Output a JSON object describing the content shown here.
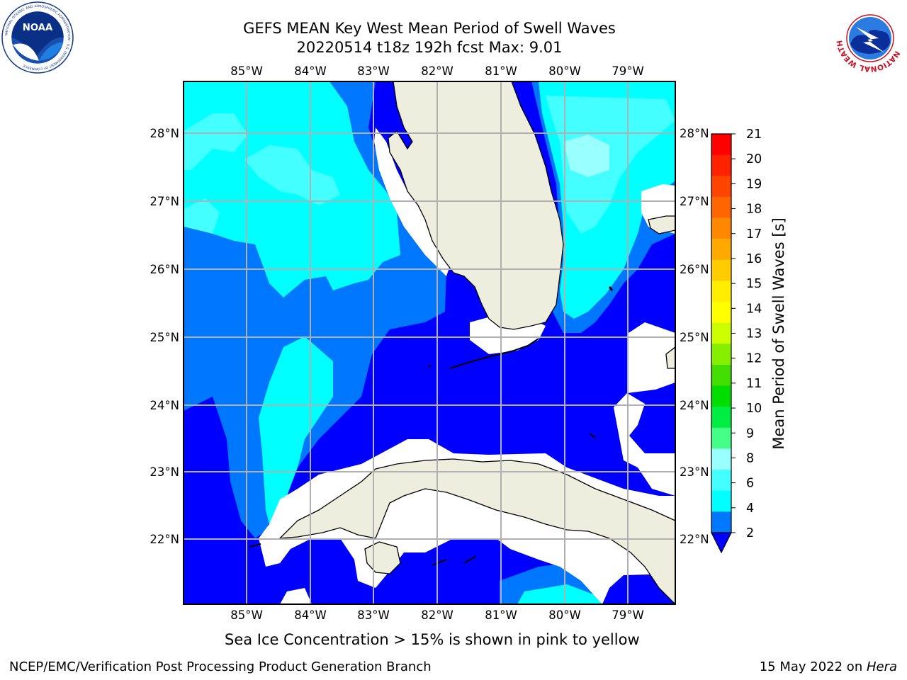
{
  "header": {
    "title_line1": "GEFS MEAN Key West Mean Period of Swell Waves",
    "title_line2": "20220514 t18z 192h fcst   Max: 9.01"
  },
  "logos": {
    "left": {
      "name": "noaa-logo",
      "text": "NOAA",
      "ring_text": "NATIONAL OCEANIC AND ATMOSPHERIC ADMINISTRATION · U.S. DEPARTMENT OF COMMERCE"
    },
    "right": {
      "name": "nws-logo",
      "ring_text": "NATIONAL WEATHER SERVICE"
    }
  },
  "map": {
    "lon_labels": [
      "85°W",
      "84°W",
      "83°W",
      "82°W",
      "81°W",
      "80°W",
      "79°W"
    ],
    "lat_labels": [
      "28°N",
      "27°N",
      "26°N",
      "25°N",
      "24°N",
      "23°N",
      "22°N"
    ],
    "lon_range": [
      -86.0,
      -78.3
    ],
    "lat_range": [
      21.05,
      28.75
    ],
    "gridlines": true,
    "colors": {
      "land": "#eeeede",
      "c2_4": "#0000ff",
      "c4_6": "#0077ff",
      "c6_7": "#00ffff",
      "c7_8": "#44ffff",
      "c8_9": "#99ffff",
      "missing": "#ffffff",
      "grid": "#b0b0b0"
    }
  },
  "colorbar": {
    "label": "Mean Period of Swell Waves [s]",
    "ticks": [
      "21",
      "20",
      "19",
      "18",
      "17",
      "16",
      "15",
      "14",
      "13",
      "12",
      "11",
      "10",
      "9",
      "8",
      "6",
      "4",
      "2"
    ],
    "colors": [
      "#ff0000",
      "#ff2200",
      "#ff4400",
      "#ff6600",
      "#ff8800",
      "#ffaa00",
      "#ffcc00",
      "#ffee00",
      "#ffff00",
      "#ccff00",
      "#88ee00",
      "#44dd00",
      "#00dd00",
      "#00ee44",
      "#44ff88",
      "#99ffff",
      "#44ffff",
      "#00ffff",
      "#0077ff"
    ],
    "extend_color": "#0000ff"
  },
  "footer": {
    "note": "Sea Ice Concentration > 15% is shown in pink to yellow",
    "left": "NCEP/EMC/Verification Post Processing Product Generation Branch",
    "right_prefix": "15 May 2022 on ",
    "right_italic": "Hera"
  }
}
